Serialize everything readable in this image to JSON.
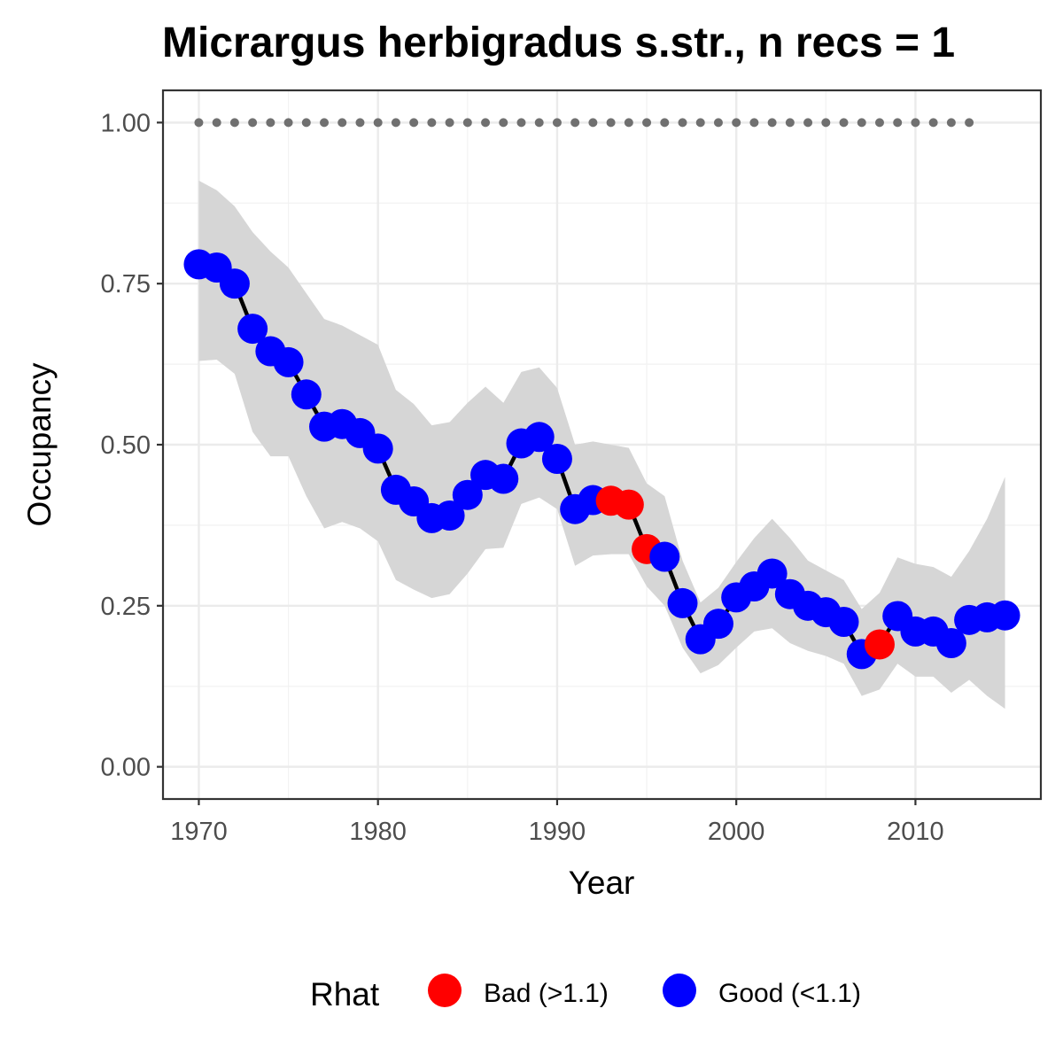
{
  "chart_data": {
    "type": "line",
    "title": "Micrargus herbigradus s.str., n recs = 1",
    "xlabel": "Year",
    "ylabel": "Occupancy",
    "xlim": [
      1968,
      2017
    ],
    "ylim": [
      -0.05,
      1.05
    ],
    "x_ticks": [
      1970,
      1980,
      1990,
      2000,
      2010
    ],
    "x_tick_labels": [
      "1970",
      "1980",
      "1990",
      "2000",
      "2010"
    ],
    "y_ticks": [
      0,
      0.25,
      0.5,
      0.75,
      1.0
    ],
    "y_tick_labels": [
      "0.00",
      "0.25",
      "0.50",
      "0.75",
      "1.00"
    ],
    "grid": true,
    "legend": {
      "title": "Rhat",
      "position": "bottom",
      "items": [
        {
          "label": "Bad (>1.1)",
          "color": "#ff0000"
        },
        {
          "label": "Good (<1.1)",
          "color": "#0000ff"
        }
      ]
    },
    "colors": {
      "good": "#0000ff",
      "bad": "#ff0000",
      "line": "#000000",
      "ribbon": "#d6d6d6",
      "records": "#707070"
    },
    "series": [
      {
        "years": [
          1970,
          1971,
          1972,
          1973,
          1974,
          1975,
          1976,
          1977,
          1978,
          1979,
          1980,
          1981,
          1982,
          1983,
          1984,
          1985,
          1986,
          1987,
          1988,
          1989,
          1990,
          1991,
          1992,
          1993,
          1994,
          1995,
          1996,
          1997,
          1998,
          1999,
          2000,
          2001,
          2002,
          2003,
          2004,
          2005,
          2006,
          2007,
          2008,
          2009,
          2010,
          2011,
          2012,
          2013,
          2014,
          2015
        ],
        "mean": [
          0.78,
          0.775,
          0.75,
          0.68,
          0.645,
          0.628,
          0.578,
          0.528,
          0.532,
          0.518,
          0.494,
          0.43,
          0.412,
          0.386,
          0.39,
          0.422,
          0.453,
          0.447,
          0.502,
          0.512,
          0.478,
          0.4,
          0.414,
          0.413,
          0.407,
          0.338,
          0.326,
          0.254,
          0.198,
          0.222,
          0.263,
          0.28,
          0.3,
          0.268,
          0.25,
          0.24,
          0.225,
          0.175,
          0.19,
          0.234,
          0.21,
          0.21,
          0.192,
          0.228,
          0.232,
          0.235
        ],
        "rhat": [
          "Good",
          "Good",
          "Good",
          "Good",
          "Good",
          "Good",
          "Good",
          "Good",
          "Good",
          "Good",
          "Good",
          "Good",
          "Good",
          "Good",
          "Good",
          "Good",
          "Good",
          "Good",
          "Good",
          "Good",
          "Good",
          "Good",
          "Good",
          "Bad",
          "Bad",
          "Bad",
          "Good",
          "Good",
          "Good",
          "Good",
          "Good",
          "Good",
          "Good",
          "Good",
          "Good",
          "Good",
          "Good",
          "Good",
          "Bad",
          "Good",
          "Good",
          "Good",
          "Good",
          "Good",
          "Good",
          "Good"
        ],
        "lower": [
          0.63,
          0.632,
          0.61,
          0.52,
          0.482,
          0.482,
          0.42,
          0.37,
          0.38,
          0.37,
          0.35,
          0.29,
          0.275,
          0.262,
          0.268,
          0.3,
          0.338,
          0.34,
          0.408,
          0.418,
          0.4,
          0.312,
          0.328,
          0.33,
          0.33,
          0.28,
          0.25,
          0.185,
          0.145,
          0.158,
          0.185,
          0.21,
          0.215,
          0.192,
          0.18,
          0.172,
          0.16,
          0.11,
          0.12,
          0.16,
          0.14,
          0.14,
          0.115,
          0.135,
          0.11,
          0.09
        ],
        "upper": [
          0.91,
          0.895,
          0.87,
          0.83,
          0.8,
          0.775,
          0.735,
          0.695,
          0.685,
          0.67,
          0.655,
          0.585,
          0.563,
          0.53,
          0.535,
          0.565,
          0.59,
          0.565,
          0.613,
          0.62,
          0.588,
          0.5,
          0.505,
          0.5,
          0.495,
          0.44,
          0.42,
          0.32,
          0.255,
          0.278,
          0.318,
          0.355,
          0.385,
          0.355,
          0.32,
          0.305,
          0.29,
          0.245,
          0.27,
          0.325,
          0.315,
          0.31,
          0.295,
          0.335,
          0.385,
          0.45
        ]
      }
    ],
    "records": {
      "years": [
        1970,
        1971,
        1972,
        1973,
        1974,
        1975,
        1976,
        1977,
        1978,
        1979,
        1980,
        1981,
        1982,
        1983,
        1984,
        1985,
        1986,
        1987,
        1988,
        1989,
        1990,
        1991,
        1992,
        1993,
        1994,
        1995,
        1996,
        1997,
        1998,
        1999,
        2000,
        2001,
        2002,
        2003,
        2004,
        2005,
        2006,
        2007,
        2008,
        2009,
        2010,
        2011,
        2012,
        2013
      ],
      "value": 1.0
    }
  }
}
